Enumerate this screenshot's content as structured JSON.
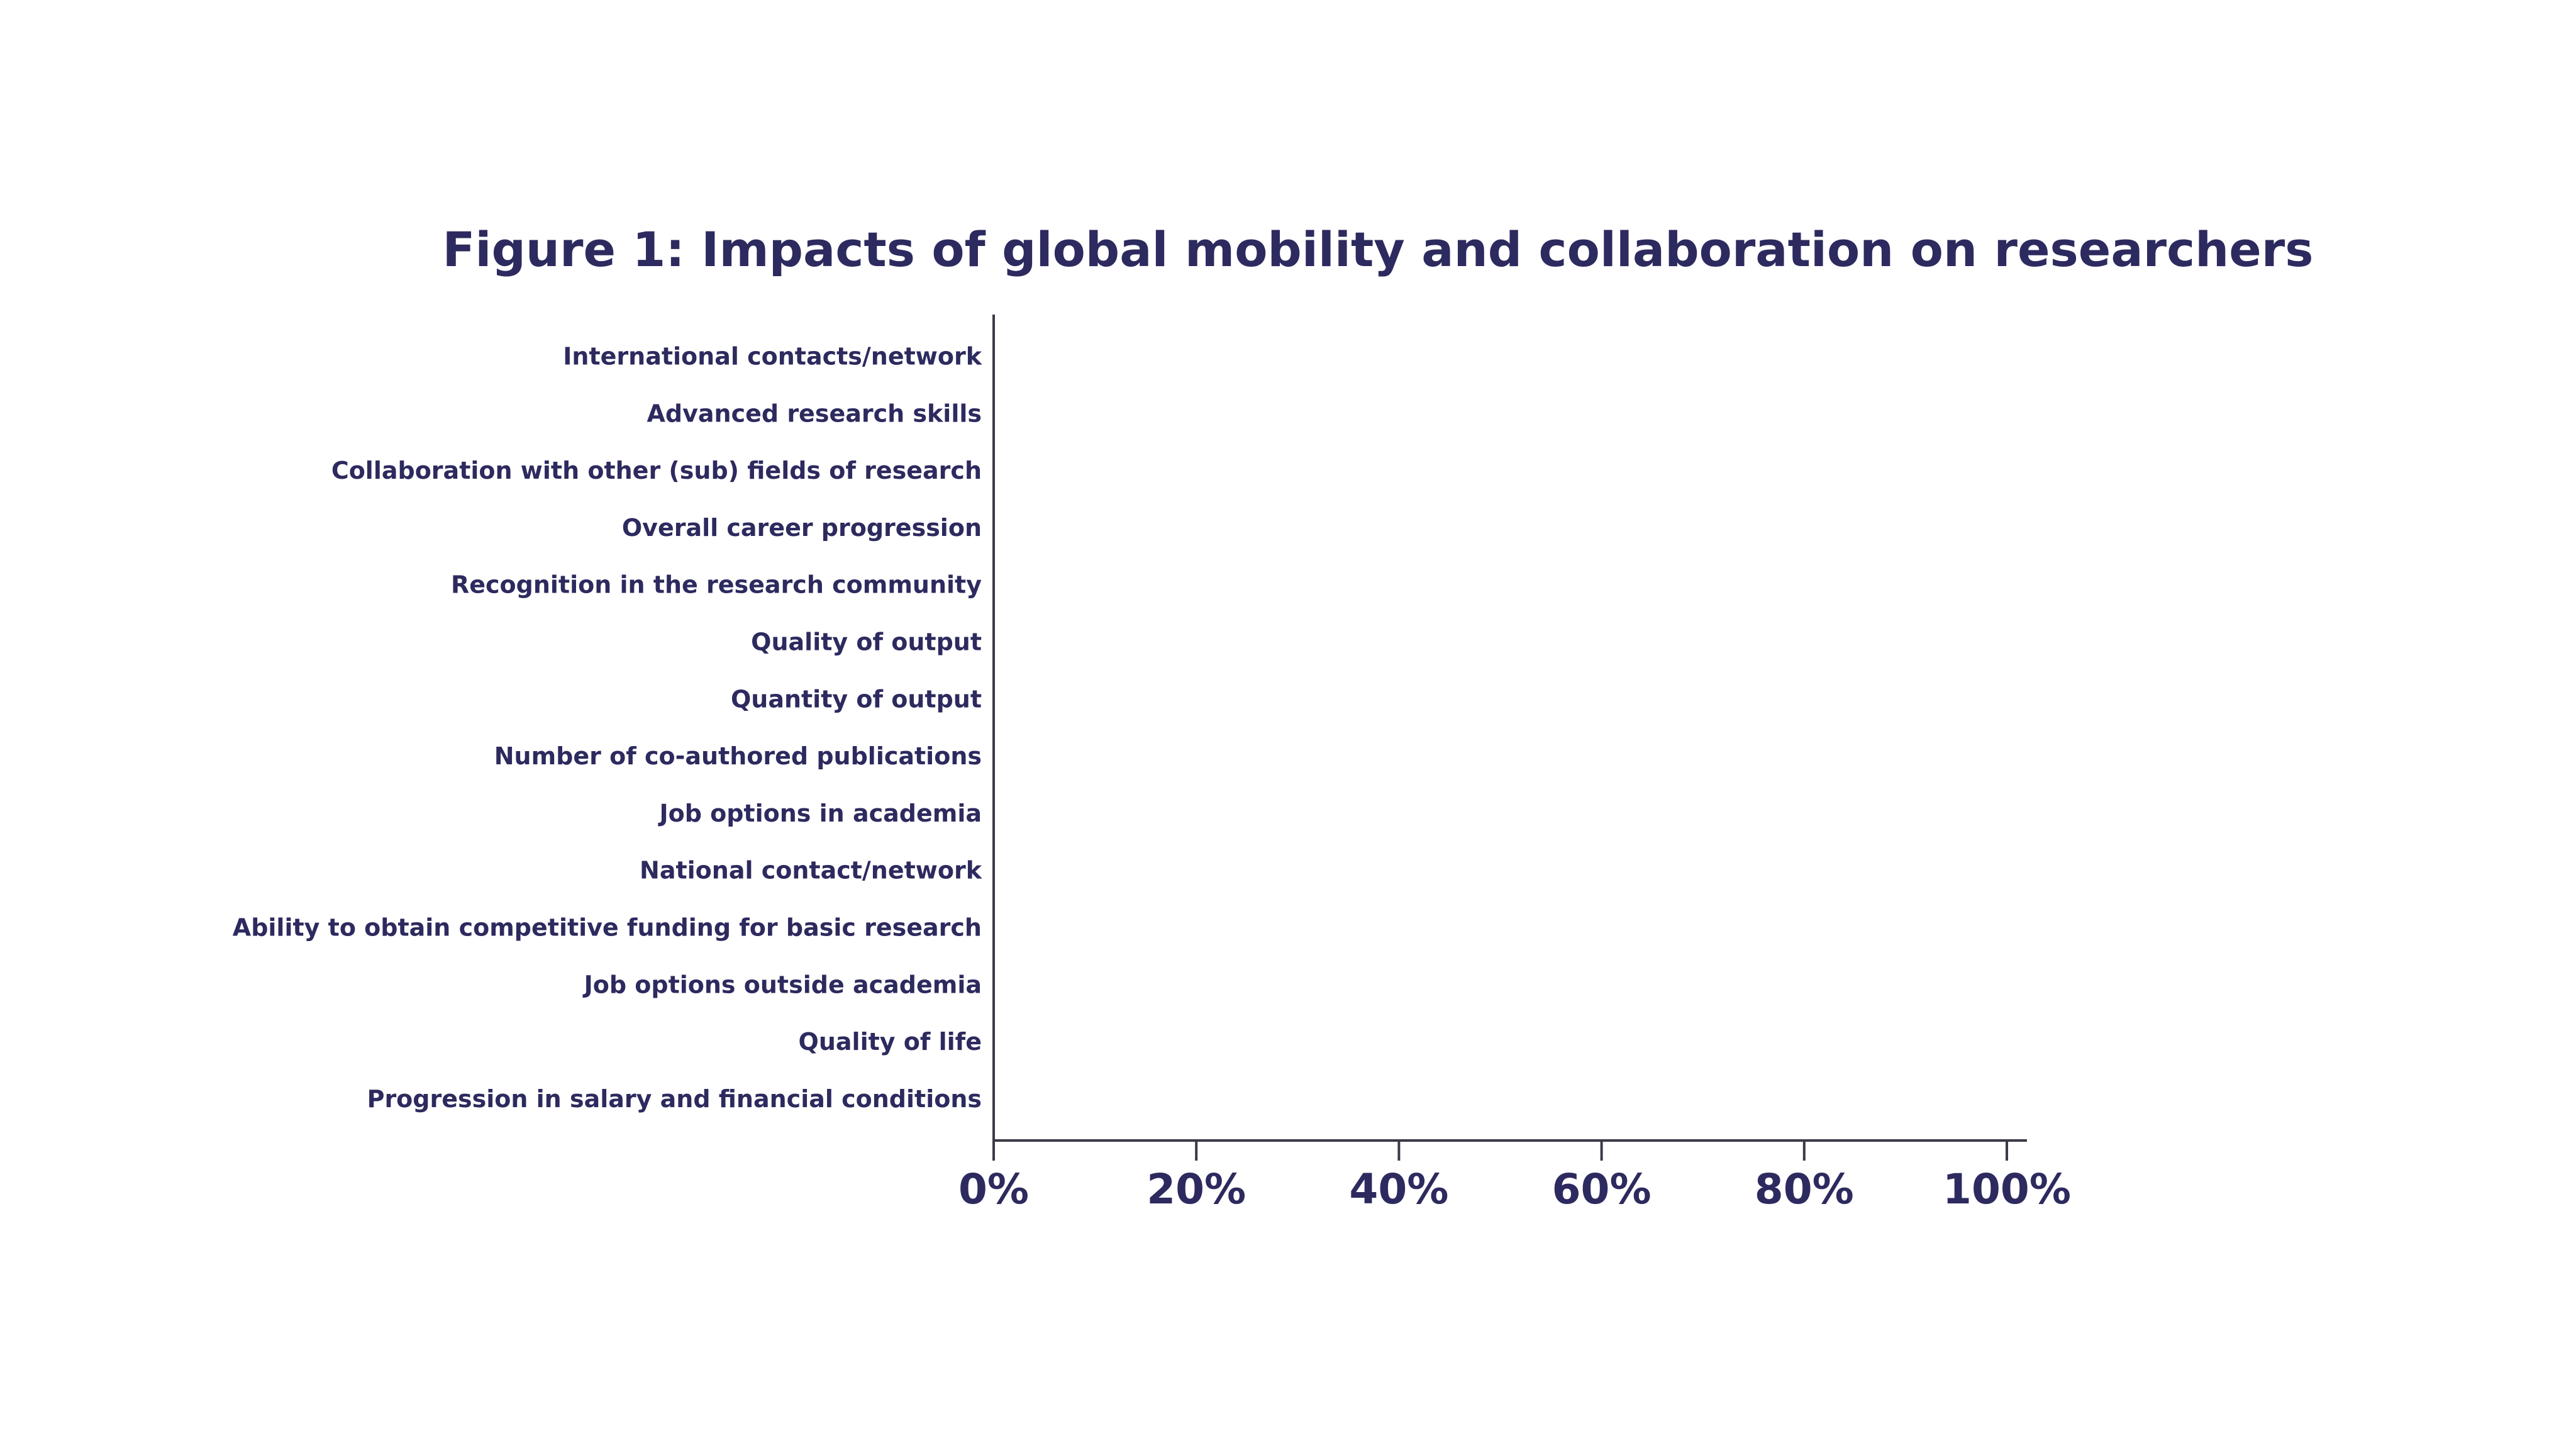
{
  "chart_data": {
    "type": "bar",
    "orientation": "horizontal",
    "title": "Figure 1: Impacts of global mobility and collaboration on researchers",
    "categories": [
      "International contacts/network",
      "Advanced research skills",
      "Collaboration with other (sub) fields of research",
      "Overall career progression",
      "Recognition in the research community",
      "Quality of output",
      "Quantity of output",
      "Number of co-authored publications",
      "Job options in academia",
      "National contact/network",
      "Ability to obtain competitive funding for basic research",
      "Job options outside academia",
      "Quality of life",
      "Progression in salary and financial conditions"
    ],
    "xlim": [
      0,
      100
    ],
    "xticks": [
      {
        "value": 0,
        "label": "0%"
      },
      {
        "value": 20,
        "label": "20%"
      },
      {
        "value": 40,
        "label": "40%"
      },
      {
        "value": 60,
        "label": "60%"
      },
      {
        "value": 80,
        "label": "80%"
      },
      {
        "value": 100,
        "label": "100%"
      }
    ],
    "color": "#2c2a5e"
  }
}
